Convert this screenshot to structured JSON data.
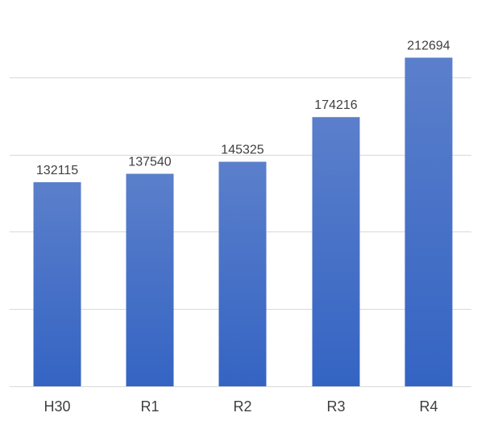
{
  "chart_data": {
    "type": "bar",
    "categories": [
      "H30",
      "R1",
      "R2",
      "R3",
      "R4"
    ],
    "values": [
      132115,
      137540,
      145325,
      174216,
      212694
    ],
    "data_labels": [
      "132115",
      "137540",
      "145325",
      "174216",
      "212694"
    ],
    "title": "",
    "xlabel": "",
    "ylabel": "",
    "ylim": [
      0,
      250000
    ],
    "grid": true,
    "legend": "none",
    "bar_color_top": "#5b7fcb",
    "bar_color_bottom": "#3464c3"
  }
}
